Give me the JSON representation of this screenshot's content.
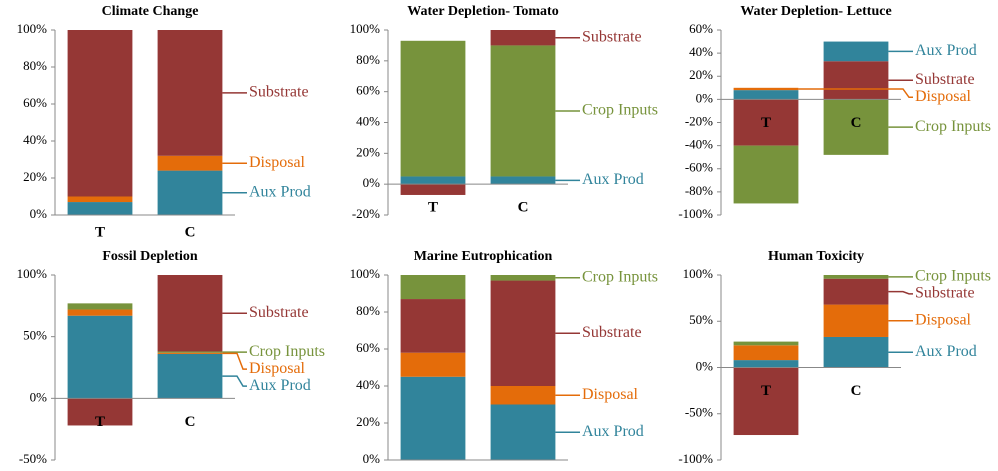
{
  "chart_data": [
    {
      "type": "bar",
      "stacked": true,
      "title": "Climate Change",
      "categories": [
        "T",
        "C"
      ],
      "ylim": [
        0,
        100
      ],
      "yticks": [
        {
          "value": 0,
          "label": "0%"
        },
        {
          "value": 20,
          "label": "20%"
        },
        {
          "value": 40,
          "label": "40%"
        },
        {
          "value": 60,
          "label": "60%"
        },
        {
          "value": 80,
          "label": "80%"
        },
        {
          "value": 100,
          "label": "100%"
        }
      ],
      "series": [
        {
          "name": "Aux Prod",
          "color": "#31849b",
          "values": [
            7,
            24
          ]
        },
        {
          "name": "Disposal",
          "color": "#e46c0a",
          "values": [
            3,
            8
          ]
        },
        {
          "name": "Substrate",
          "color": "#953735",
          "values": [
            90,
            68
          ]
        }
      ]
    },
    {
      "type": "bar",
      "stacked": true,
      "title": "Water Depletion- Tomato",
      "categories": [
        "T",
        "C"
      ],
      "ylim": [
        -20,
        100
      ],
      "yticks": [
        {
          "value": -20,
          "label": "-20%"
        },
        {
          "value": 0,
          "label": "0%"
        },
        {
          "value": 20,
          "label": "20%"
        },
        {
          "value": 40,
          "label": "40%"
        },
        {
          "value": 60,
          "label": "60%"
        },
        {
          "value": 80,
          "label": "80%"
        },
        {
          "value": 100,
          "label": "100%"
        }
      ],
      "series": [
        {
          "name": "Aux Prod",
          "color": "#31849b",
          "values": [
            5,
            5
          ]
        },
        {
          "name": "Crop Inputs",
          "color": "#77933c",
          "values": [
            88,
            85
          ]
        },
        {
          "name": "Substrate",
          "color": "#953735",
          "values": [
            -7,
            10
          ]
        }
      ]
    },
    {
      "type": "bar",
      "stacked": true,
      "title": "Water Depletion- Lettuce",
      "categories": [
        "T",
        "C"
      ],
      "ylim": [
        -100,
        60
      ],
      "yticks": [
        {
          "value": -100,
          "label": "-100%"
        },
        {
          "value": -80,
          "label": "-80%"
        },
        {
          "value": -60,
          "label": "-60%"
        },
        {
          "value": -40,
          "label": "-40%"
        },
        {
          "value": -20,
          "label": "-20%"
        },
        {
          "value": 0,
          "label": "0%"
        },
        {
          "value": 20,
          "label": "20%"
        },
        {
          "value": 40,
          "label": "40%"
        },
        {
          "value": 60,
          "label": "60%"
        }
      ],
      "series": [
        {
          "name": "Substrate",
          "color": "#953735",
          "values": [
            -40,
            33
          ]
        },
        {
          "name": "Aux Prod",
          "color": "#31849b",
          "values": [
            8,
            17
          ]
        },
        {
          "name": "Disposal",
          "color": "#e46c0a",
          "values": [
            2,
            0
          ]
        },
        {
          "name": "Crop Inputs",
          "color": "#77933c",
          "values": [
            -50,
            -48
          ]
        }
      ]
    },
    {
      "type": "bar",
      "stacked": true,
      "title": "Fossil Depletion",
      "categories": [
        "T",
        "C"
      ],
      "ylim": [
        -50,
        100
      ],
      "yticks": [
        {
          "value": -50,
          "label": "-50%"
        },
        {
          "value": 0,
          "label": "0%"
        },
        {
          "value": 50,
          "label": "50%"
        },
        {
          "value": 100,
          "label": "100%"
        }
      ],
      "series": [
        {
          "name": "Aux Prod",
          "color": "#31849b",
          "values": [
            67,
            36
          ]
        },
        {
          "name": "Disposal",
          "color": "#e46c0a",
          "values": [
            5,
            1
          ]
        },
        {
          "name": "Crop Inputs",
          "color": "#77933c",
          "values": [
            5,
            1
          ]
        },
        {
          "name": "Substrate",
          "color": "#953735",
          "values": [
            -22,
            62
          ]
        }
      ]
    },
    {
      "type": "bar",
      "stacked": true,
      "title": "Marine Eutrophication",
      "categories": [
        "T",
        "C"
      ],
      "ylim": [
        0,
        100
      ],
      "yticks": [
        {
          "value": 0,
          "label": "0%"
        },
        {
          "value": 20,
          "label": "20%"
        },
        {
          "value": 40,
          "label": "40%"
        },
        {
          "value": 60,
          "label": "60%"
        },
        {
          "value": 80,
          "label": "80%"
        },
        {
          "value": 100,
          "label": "100%"
        }
      ],
      "series": [
        {
          "name": "Aux Prod",
          "color": "#31849b",
          "values": [
            45,
            30
          ]
        },
        {
          "name": "Disposal",
          "color": "#e46c0a",
          "values": [
            13,
            10
          ]
        },
        {
          "name": "Substrate",
          "color": "#953735",
          "values": [
            29,
            57
          ]
        },
        {
          "name": "Crop Inputs",
          "color": "#77933c",
          "values": [
            13,
            3
          ]
        }
      ]
    },
    {
      "type": "bar",
      "stacked": true,
      "title": "Human Toxicity",
      "categories": [
        "T",
        "C"
      ],
      "ylim": [
        -100,
        100
      ],
      "yticks": [
        {
          "value": -100,
          "label": "-100%"
        },
        {
          "value": -50,
          "label": "-50%"
        },
        {
          "value": 0,
          "label": "0%"
        },
        {
          "value": 50,
          "label": "50%"
        },
        {
          "value": 100,
          "label": "100%"
        }
      ],
      "series": [
        {
          "name": "Aux Prod",
          "color": "#31849b",
          "values": [
            8,
            33
          ]
        },
        {
          "name": "Disposal",
          "color": "#e46c0a",
          "values": [
            16,
            35
          ]
        },
        {
          "name": "Substrate",
          "color": "#953735",
          "values": [
            -73,
            28
          ]
        },
        {
          "name": "Crop Inputs",
          "color": "#77933c",
          "values": [
            4,
            4
          ]
        }
      ]
    }
  ]
}
